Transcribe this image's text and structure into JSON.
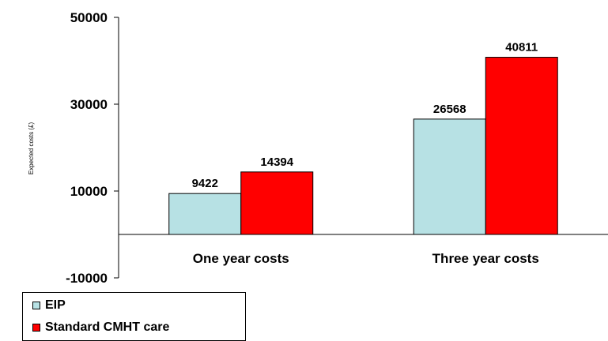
{
  "chart_data": {
    "type": "bar",
    "title": "",
    "xlabel": "",
    "ylabel": "Expected costs (£)",
    "categories": [
      "One year costs",
      "Three year costs"
    ],
    "series": [
      {
        "name": "EIP",
        "values": [
          9422,
          26568
        ],
        "color": "#b7e1e4"
      },
      {
        "name": "Standard CMHT care",
        "values": [
          14394,
          40811
        ],
        "color": "#ff0000"
      }
    ],
    "ylim": [
      -10000,
      50000
    ],
    "yticks": [
      -10000,
      10000,
      30000,
      50000
    ],
    "grid": false,
    "legend": "bottom-left"
  }
}
